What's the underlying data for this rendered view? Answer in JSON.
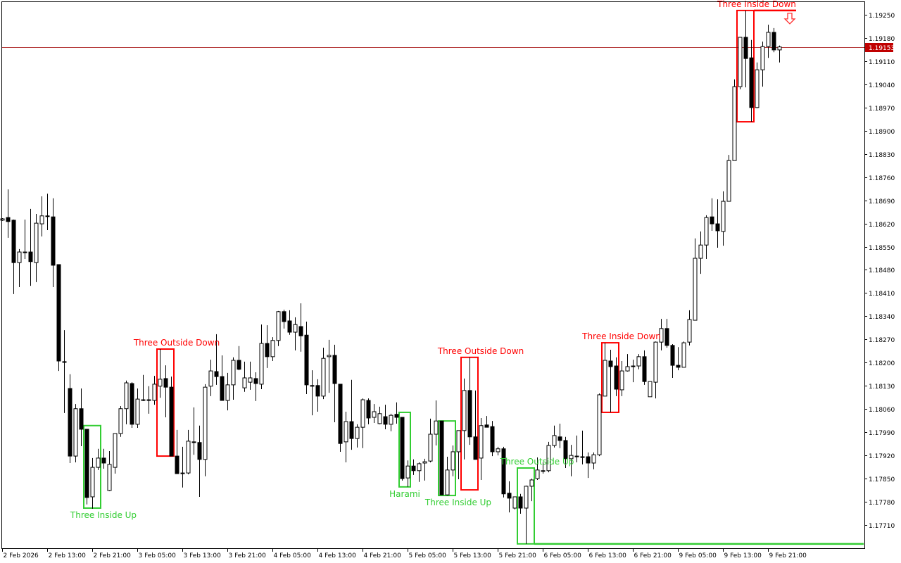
{
  "chart_data": {
    "type": "candlestick",
    "timeframe_hours": 1,
    "ylim": [
      1.1763,
      1.193
    ],
    "grid": false,
    "colors": {
      "background": "#ffffff",
      "bull_body": "#ffffff",
      "bear_body": "#000000",
      "wick": "#000000",
      "bearish_pattern": "#ff0000",
      "bullish_pattern": "#32cd32",
      "current_price_line": "#a00000",
      "current_price_tag": "#c00000"
    },
    "y_ticks": [
      "1.19250",
      "1.19180",
      "1.19110",
      "1.19040",
      "1.18970",
      "1.18900",
      "1.18830",
      "1.18760",
      "1.18690",
      "1.18620",
      "1.18550",
      "1.18480",
      "1.18410",
      "1.18340",
      "1.18270",
      "1.18200",
      "1.18130",
      "1.18060",
      "1.17990",
      "1.17920",
      "1.17850",
      "1.17780",
      "1.17710"
    ],
    "x_ticks": [
      "2 Feb 2026",
      "2 Feb 13:00",
      "2 Feb 21:00",
      "3 Feb 05:00",
      "3 Feb 13:00",
      "3 Feb 21:00",
      "4 Feb 05:00",
      "4 Feb 13:00",
      "4 Feb 21:00",
      "5 Feb 05:00",
      "5 Feb 13:00",
      "5 Feb 21:00",
      "6 Feb 05:00",
      "6 Feb 13:00",
      "6 Feb 21:00",
      "9 Feb 05:00",
      "9 Feb 13:00",
      "9 Feb 21:00"
    ],
    "x_tick_every_n_candles": 8,
    "current_price": "1.19153",
    "ohlc_fields": [
      "open",
      "high",
      "low",
      "close"
    ],
    "candles": [
      [
        1.1863,
        1.18636,
        1.18628,
        1.18634
      ],
      [
        1.18638,
        1.18723,
        1.18577,
        1.18626
      ],
      [
        1.1863,
        1.18632,
        1.18407,
        1.18502
      ],
      [
        1.18502,
        1.18543,
        1.18428,
        1.18534
      ],
      [
        1.18534,
        1.18632,
        1.18513,
        1.18534
      ],
      [
        1.18534,
        1.18664,
        1.18432,
        1.18505
      ],
      [
        1.18502,
        1.18649,
        1.18443,
        1.18621
      ],
      [
        1.18619,
        1.18702,
        1.18581,
        1.18643
      ],
      [
        1.18643,
        1.1871,
        1.186,
        1.18643
      ],
      [
        1.1864,
        1.18696,
        1.18428,
        1.18494
      ],
      [
        1.18496,
        1.18496,
        1.18175,
        1.18205
      ],
      [
        1.18203,
        1.18298,
        1.18048,
        1.18203
      ],
      [
        1.18122,
        1.18165,
        1.17897,
        1.17918
      ],
      [
        1.17918,
        1.18075,
        1.17899,
        1.18061
      ],
      [
        1.18061,
        1.18122,
        1.17948,
        1.17999
      ],
      [
        1.17999,
        1.17999,
        1.17772,
        1.17793
      ],
      [
        1.17795,
        1.17912,
        1.17759,
        1.17884
      ],
      [
        1.17884,
        1.1794,
        1.17876,
        1.17912
      ],
      [
        1.17912,
        1.1794,
        1.1788,
        1.17897
      ],
      [
        1.17814,
        1.17933,
        1.17812,
        1.17893
      ],
      [
        1.17884,
        1.17986,
        1.17865,
        1.17986
      ],
      [
        1.17986,
        1.18069,
        1.17976,
        1.18061
      ],
      [
        1.18061,
        1.18146,
        1.18014,
        1.18139
      ],
      [
        1.18137,
        1.18141,
        1.18003,
        1.18014
      ],
      [
        1.18014,
        1.18122,
        1.18003,
        1.1809
      ],
      [
        1.18088,
        1.18163,
        1.18084,
        1.18088
      ],
      [
        1.18088,
        1.18129,
        1.18046,
        1.18088
      ],
      [
        1.18086,
        1.1816,
        1.18073,
        1.18135
      ],
      [
        1.18129,
        1.18241,
        1.18094,
        1.1815
      ],
      [
        1.18152,
        1.18192,
        1.18035,
        1.18126
      ],
      [
        1.18126,
        1.18158,
        1.17918,
        1.17918
      ],
      [
        1.17918,
        1.17997,
        1.17865,
        1.17865
      ],
      [
        1.17867,
        1.17946,
        1.17823,
        1.17867
      ],
      [
        1.17867,
        1.17997,
        1.17863,
        1.17963
      ],
      [
        1.17961,
        1.18065,
        1.17922,
        1.17961
      ],
      [
        1.17959,
        1.1801,
        1.17795,
        1.17908
      ],
      [
        1.17908,
        1.18135,
        1.17857,
        1.18126
      ],
      [
        1.18129,
        1.18209,
        1.18099,
        1.18175
      ],
      [
        1.18173,
        1.18286,
        1.18133,
        1.18158
      ],
      [
        1.18158,
        1.18222,
        1.18086,
        1.18086
      ],
      [
        1.18086,
        1.18169,
        1.18056,
        1.18133
      ],
      [
        1.18133,
        1.18216,
        1.18088,
        1.18207
      ],
      [
        1.18207,
        1.1825,
        1.18177,
        1.1818
      ],
      [
        1.18124,
        1.18203,
        1.18112,
        1.18154
      ],
      [
        1.18141,
        1.18203,
        1.18118,
        1.18154
      ],
      [
        1.18152,
        1.18171,
        1.18084,
        1.18137
      ],
      [
        1.18135,
        1.18315,
        1.1812,
        1.18258
      ],
      [
        1.18258,
        1.18313,
        1.18184,
        1.18218
      ],
      [
        1.18218,
        1.18277,
        1.18205,
        1.18267
      ],
      [
        1.18267,
        1.18356,
        1.1825,
        1.18354
      ],
      [
        1.18354,
        1.1836,
        1.18303,
        1.18324
      ],
      [
        1.18326,
        1.18358,
        1.18284,
        1.18292
      ],
      [
        1.18292,
        1.18337,
        1.18237,
        1.18315
      ],
      [
        1.18309,
        1.18379,
        1.18233,
        1.18281
      ],
      [
        1.18283,
        1.18324,
        1.18105,
        1.18133
      ],
      [
        1.18131,
        1.18177,
        1.18041,
        1.18131
      ],
      [
        1.18131,
        1.1815,
        1.18052,
        1.18099
      ],
      [
        1.18099,
        1.18245,
        1.1809,
        1.18213
      ],
      [
        1.18218,
        1.18269,
        1.18109,
        1.18222
      ],
      [
        1.18222,
        1.18254,
        1.1802,
        1.18137
      ],
      [
        1.18135,
        1.18135,
        1.17931,
        1.17956
      ],
      [
        1.17961,
        1.18052,
        1.17899,
        1.18022
      ],
      [
        1.18022,
        1.18148,
        1.17937,
        1.17971
      ],
      [
        1.17971,
        1.18014,
        1.17944,
        1.18005
      ],
      [
        1.18005,
        1.18092,
        1.17942,
        1.18088
      ],
      [
        1.18086,
        1.18092,
        1.18014,
        1.18033
      ],
      [
        1.18035,
        1.18075,
        1.18018,
        1.18052
      ],
      [
        1.18016,
        1.18067,
        1.18014,
        1.18046
      ],
      [
        1.18037,
        1.18073,
        1.17999,
        1.18014
      ],
      [
        1.18014,
        1.18046,
        1.17993,
        1.18041
      ],
      [
        1.18044,
        1.1808,
        1.18016,
        1.18035
      ],
      [
        1.18035,
        1.18035,
        1.17844,
        1.1785
      ],
      [
        1.17852,
        1.17905,
        1.17825,
        1.17888
      ],
      [
        1.17888,
        1.17908,
        1.17861,
        1.17874
      ],
      [
        1.17874,
        1.17899,
        1.1784,
        1.17895
      ],
      [
        1.17897,
        1.1791,
        1.17844,
        1.17901
      ],
      [
        1.17903,
        1.18031,
        1.17899,
        1.17984
      ],
      [
        1.17984,
        1.18086,
        1.1795,
        1.18024
      ],
      [
        1.18024,
        1.18024,
        1.17801,
        1.17801
      ],
      [
        1.17801,
        1.17916,
        1.17799,
        1.17876
      ],
      [
        1.17876,
        1.1795,
        1.17857,
        1.17931
      ],
      [
        1.17931,
        1.17995,
        1.17848,
        1.17995
      ],
      [
        1.17995,
        1.18152,
        1.17908,
        1.18116
      ],
      [
        1.18116,
        1.18216,
        1.17952,
        1.17976
      ],
      [
        1.17976,
        1.18116,
        1.17908,
        1.17908
      ],
      [
        1.17912,
        1.18033,
        1.17846,
        1.1801
      ],
      [
        1.18012,
        1.18039,
        1.18005,
        1.18005
      ],
      [
        1.18007,
        1.18024,
        1.17918,
        1.17931
      ],
      [
        1.17931,
        1.17946,
        1.1792,
        1.1794
      ],
      [
        1.1794,
        1.17946,
        1.17793,
        1.17804
      ],
      [
        1.17806,
        1.17842,
        1.17748,
        1.17791
      ],
      [
        1.17761,
        1.17795,
        1.17757,
        1.17795
      ],
      [
        1.17795,
        1.17804,
        1.17744,
        1.17761
      ],
      [
        1.17761,
        1.17829,
        1.17653,
        1.17827
      ],
      [
        1.17827,
        1.1785,
        1.17782,
        1.17846
      ],
      [
        1.1785,
        1.17914,
        1.17846,
        1.17876
      ],
      [
        1.17874,
        1.17899,
        1.17865,
        1.17874
      ],
      [
        1.17874,
        1.17961,
        1.17869,
        1.1795
      ],
      [
        1.1795,
        1.1801,
        1.17944,
        1.1798
      ],
      [
        1.17976,
        1.18016,
        1.17942,
        1.17965
      ],
      [
        1.17965,
        1.17976,
        1.17882,
        1.1791
      ],
      [
        1.1791,
        1.17952,
        1.17857,
        1.1792
      ],
      [
        1.17918,
        1.1798,
        1.17899,
        1.17918
      ],
      [
        1.17916,
        1.17995,
        1.17893,
        1.17916
      ],
      [
        1.17916,
        1.17929,
        1.17852,
        1.17897
      ],
      [
        1.17897,
        1.17929,
        1.17878,
        1.17922
      ],
      [
        1.17922,
        1.18107,
        1.17918,
        1.18103
      ],
      [
        1.18099,
        1.1826,
        1.18099,
        1.18207
      ],
      [
        1.18205,
        1.18239,
        1.1805,
        1.18188
      ],
      [
        1.1819,
        1.18216,
        1.18099,
        1.1812
      ],
      [
        1.18118,
        1.18205,
        1.18099,
        1.18175
      ],
      [
        1.18175,
        1.18226,
        1.18173,
        1.18188
      ],
      [
        1.1819,
        1.18209,
        1.18141,
        1.18188
      ],
      [
        1.1819,
        1.18226,
        1.1818,
        1.18218
      ],
      [
        1.18218,
        1.18237,
        1.18133,
        1.18143
      ],
      [
        1.18097,
        1.18143,
        1.18097,
        1.18143
      ],
      [
        1.18141,
        1.18264,
        1.18092,
        1.18262
      ],
      [
        1.18262,
        1.18332,
        1.18237,
        1.18303
      ],
      [
        1.18303,
        1.18332,
        1.18245,
        1.18252
      ],
      [
        1.18252,
        1.18256,
        1.18154,
        1.18192
      ],
      [
        1.18192,
        1.18247,
        1.18177,
        1.18186
      ],
      [
        1.18186,
        1.18264,
        1.18186,
        1.1826
      ],
      [
        1.18262,
        1.18358,
        1.18252,
        1.1833
      ],
      [
        1.18328,
        1.18575,
        1.18328,
        1.18515
      ],
      [
        1.18515,
        1.18596,
        1.18468,
        1.18555
      ],
      [
        1.18555,
        1.18645,
        1.18513,
        1.18638
      ],
      [
        1.1864,
        1.18696,
        1.18598,
        1.18619
      ],
      [
        1.18619,
        1.18693,
        1.18547,
        1.18598
      ],
      [
        1.18596,
        1.18717,
        1.18553,
        1.18687
      ],
      [
        1.18687,
        1.18827,
        1.18687,
        1.1881
      ],
      [
        1.1881,
        1.19055,
        1.1881,
        1.19033
      ],
      [
        1.19033,
        1.19182,
        1.19025,
        1.19182
      ],
      [
        1.19182,
        1.19263,
        1.19031,
        1.19118
      ],
      [
        1.1912,
        1.19174,
        1.18927,
        1.1897
      ],
      [
        1.1897,
        1.19106,
        1.18968,
        1.19084
      ],
      [
        1.19084,
        1.19169,
        1.19033,
        1.19154
      ],
      [
        1.19154,
        1.1922,
        1.1912,
        1.19197
      ],
      [
        1.19197,
        1.1921,
        1.19137,
        1.19144
      ],
      [
        1.19144,
        1.19157,
        1.19106,
        1.19153
      ]
    ],
    "patterns": [
      {
        "label": "Three Inside Up",
        "kind": "bullish",
        "from": 15,
        "to": 17,
        "high": 1.1801,
        "low": 1.17761,
        "label_side": "below"
      },
      {
        "label": "Three Outside Down",
        "kind": "bearish",
        "from": 28,
        "to": 30,
        "high": 1.18241,
        "low": 1.17918,
        "label_side": "above"
      },
      {
        "label": "Harami",
        "kind": "bullish",
        "from": 71,
        "to": 72,
        "high": 1.1805,
        "low": 1.17825,
        "label_side": "below"
      },
      {
        "label": "Three Inside Up",
        "kind": "bullish",
        "from": 78,
        "to": 80,
        "high": 1.18024,
        "low": 1.17799,
        "label_side": "below"
      },
      {
        "label": "Three Outside Down",
        "kind": "bearish",
        "from": 82,
        "to": 84,
        "high": 1.18216,
        "low": 1.17816,
        "label_side": "above"
      },
      {
        "label": "Three Outside Up",
        "kind": "bullish",
        "from": 92,
        "to": 94,
        "high": 1.17882,
        "low": 1.17653,
        "label_side": "below",
        "level_line": "low"
      },
      {
        "label": "Three Inside Down",
        "kind": "bearish",
        "from": 107,
        "to": 109,
        "high": 1.1826,
        "low": 1.1805,
        "label_side": "above"
      },
      {
        "label": "Three Inside Down",
        "kind": "bearish",
        "from": 131,
        "to": 133,
        "high": 1.19263,
        "low": 1.18927,
        "label_side": "above",
        "level_line": "high",
        "signal": "sell-arrow-down"
      }
    ]
  }
}
